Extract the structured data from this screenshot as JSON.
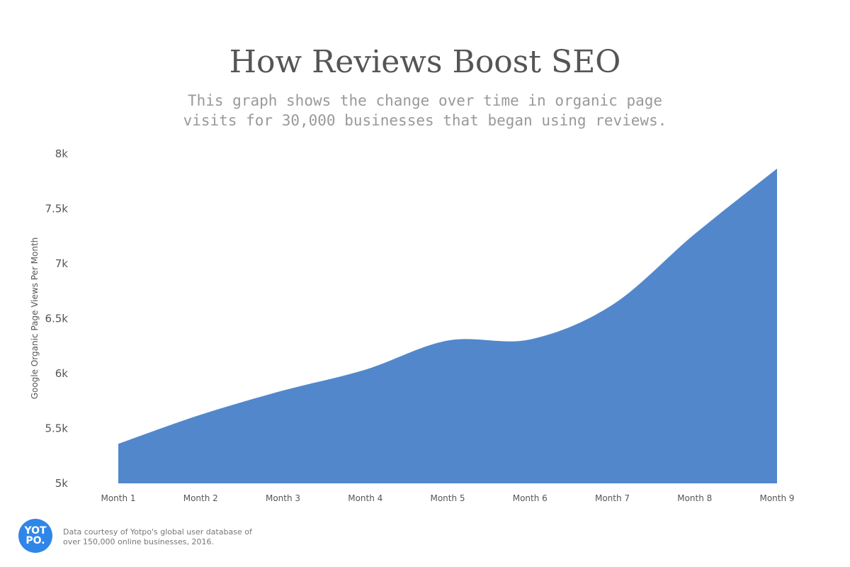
{
  "chart_data": {
    "type": "area",
    "title": "How Reviews Boost SEO",
    "subtitle": "This graph shows the change over time in organic page visits for 30,000 businesses that began using reviews.",
    "xlabel": "",
    "ylabel": "Google Organic Page Views Per Month",
    "categories": [
      "Month 1",
      "Month 2",
      "Month 3",
      "Month 4",
      "Month 5",
      "Month 6",
      "Month 7",
      "Month 8",
      "Month 9"
    ],
    "values": [
      5360,
      5625,
      5845,
      6035,
      6300,
      6310,
      6625,
      7270,
      7865
    ],
    "ylim": [
      5000,
      8000
    ],
    "yticks": [
      5000,
      5500,
      6000,
      6500,
      7000,
      7500,
      8000
    ],
    "ytick_labels": [
      "5k",
      "5.5k",
      "6k",
      "6.5k",
      "7k",
      "7.5k",
      "8k"
    ],
    "grid": false,
    "color": "#5288cb"
  },
  "footer": {
    "logo_text": "YOTPO.",
    "note_line1": "Data courtesy of Yotpo's global user database of",
    "note_line2": "over 150,000 online businesses, 2016."
  }
}
